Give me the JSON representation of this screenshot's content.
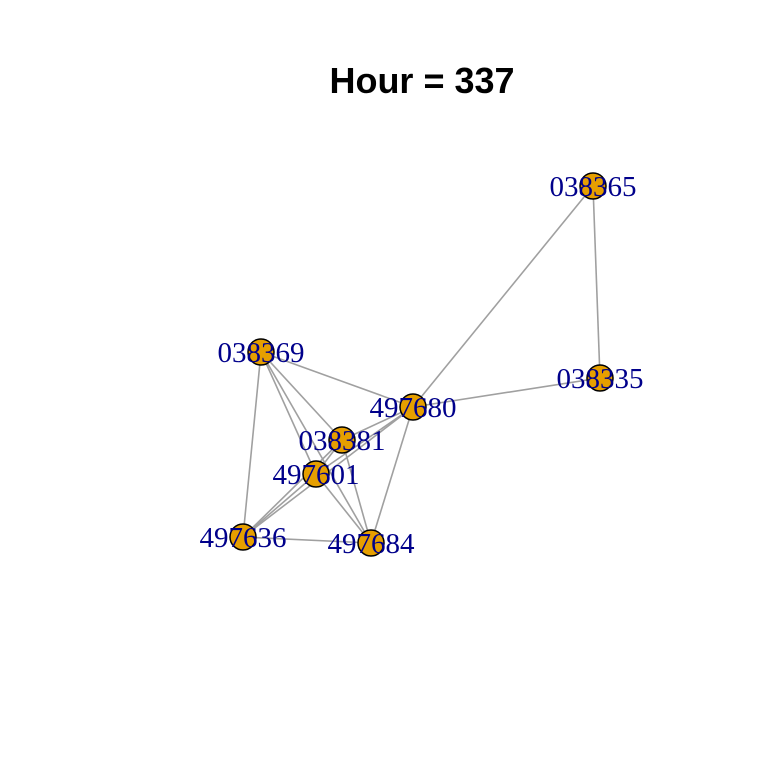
{
  "title": "Hour = 337",
  "colors": {
    "node_fill": "#E69F00",
    "node_stroke": "#000000",
    "edge": "#A0A0A0",
    "label": "#00008B",
    "title": "#000000"
  },
  "nodes": [
    {
      "id": "038365",
      "label": "038365"
    },
    {
      "id": "038369",
      "label": "038369"
    },
    {
      "id": "038335",
      "label": "038335"
    },
    {
      "id": "497680",
      "label": "497680"
    },
    {
      "id": "038381",
      "label": "038381"
    },
    {
      "id": "497601",
      "label": "497601"
    },
    {
      "id": "497636",
      "label": "497636"
    },
    {
      "id": "497684",
      "label": "497684"
    }
  ],
  "edges": [
    [
      "038365",
      "497680"
    ],
    [
      "038365",
      "038335"
    ],
    [
      "038335",
      "497680"
    ],
    [
      "038369",
      "497680"
    ],
    [
      "038369",
      "038381"
    ],
    [
      "038369",
      "497601"
    ],
    [
      "038369",
      "497636"
    ],
    [
      "038369",
      "497684"
    ],
    [
      "497680",
      "038381"
    ],
    [
      "497680",
      "497601"
    ],
    [
      "497680",
      "497636"
    ],
    [
      "497680",
      "497684"
    ],
    [
      "038381",
      "497601"
    ],
    [
      "038381",
      "497636"
    ],
    [
      "038381",
      "497684"
    ],
    [
      "497601",
      "497636"
    ],
    [
      "497601",
      "497684"
    ],
    [
      "497636",
      "497684"
    ]
  ]
}
